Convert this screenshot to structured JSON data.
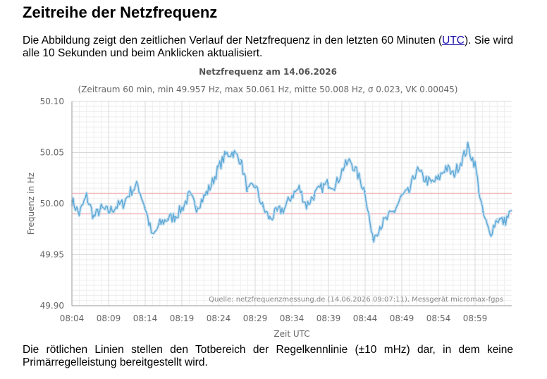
{
  "page": {
    "heading": "Zeitreihe der Netzfrequenz",
    "intro_before": "Die Abbildung zeigt den zeitlichen Verlauf der Netzfrequenz in den letzten 60 Minuten (",
    "intro_link": "UTC",
    "intro_after": "). Sie wird alle 10 Sekunden und beim Anklicken aktualisiert.",
    "outro": "Die rötlichen Linien stellen den Totbereich der Regelkennlinie (±10 mHz) dar, in dem keine Primärregelleistung bereitgestellt wird."
  },
  "colors": {
    "line": "#5aa7d6",
    "band": "#c8e0f0",
    "deadband": "#f2b8bc",
    "grid_major": "#d9d9d9",
    "grid_minor": "#eeeeee",
    "axis_text": "#666666",
    "title_text": "#555555"
  },
  "chart_data": {
    "type": "line",
    "title": "Netzfrequenz am 14.06.2026",
    "subtitle": "(Zeitraum 60 min, min 49.957 Hz, max 50.061 Hz, mitte 50.008 Hz, σ 0.023, VK 0.00045)",
    "xlabel": "Zeit UTC",
    "ylabel": "Frequenz in Hz",
    "source": "Quelle: netzfrequenzmessung.de (14.06.2026 09:07:11), Messgerät micromax-fgps",
    "x_ticks": [
      "08:04",
      "08:09",
      "08:14",
      "08:19",
      "08:24",
      "08:29",
      "08:34",
      "08:39",
      "08:44",
      "08:49",
      "08:54",
      "08:59"
    ],
    "y_ticks": [
      "49.90",
      "49.95",
      "50.00",
      "50.05",
      "50.10"
    ],
    "ylim": [
      49.9,
      50.1
    ],
    "xlim": [
      "08:04",
      "09:04"
    ],
    "grid": true,
    "deadband": [
      49.99,
      50.01
    ],
    "series": [
      {
        "x": [
          "08:04",
          "08:05",
          "08:06",
          "08:07",
          "08:08",
          "08:09",
          "08:10",
          "08:11",
          "08:12",
          "08:13",
          "08:14",
          "08:15",
          "08:16",
          "08:17",
          "08:18",
          "08:19",
          "08:20",
          "08:21",
          "08:22",
          "08:23",
          "08:24",
          "08:25",
          "08:26",
          "08:27",
          "08:28",
          "08:29",
          "08:30",
          "08:31",
          "08:32",
          "08:33",
          "08:34",
          "08:35",
          "08:36",
          "08:37",
          "08:38",
          "08:39",
          "08:40",
          "08:41",
          "08:42",
          "08:43",
          "08:44",
          "08:45",
          "08:46",
          "08:47",
          "08:48",
          "08:49",
          "08:50",
          "08:51",
          "08:52",
          "08:53",
          "08:54",
          "08:55",
          "08:56",
          "08:57",
          "08:58",
          "08:59",
          "09:00",
          "09:01",
          "09:02",
          "09:03",
          "09:04"
        ],
        "values": [
          50.003,
          49.99,
          50.007,
          49.987,
          49.995,
          49.992,
          49.997,
          50.0,
          50.012,
          50.018,
          49.996,
          49.967,
          49.98,
          49.985,
          49.987,
          49.995,
          50.008,
          49.997,
          50.006,
          50.018,
          50.035,
          50.048,
          50.05,
          50.043,
          50.012,
          50.018,
          49.997,
          49.985,
          49.992,
          49.995,
          50.008,
          50.015,
          49.998,
          50.008,
          50.015,
          50.02,
          50.018,
          50.035,
          50.042,
          50.028,
          50.012,
          49.965,
          49.978,
          49.985,
          49.993,
          50.007,
          50.011,
          50.033,
          50.025,
          50.02,
          50.024,
          50.036,
          50.028,
          50.04,
          50.055,
          50.038,
          49.992,
          49.97,
          49.985,
          49.982,
          49.993
        ]
      }
    ]
  }
}
